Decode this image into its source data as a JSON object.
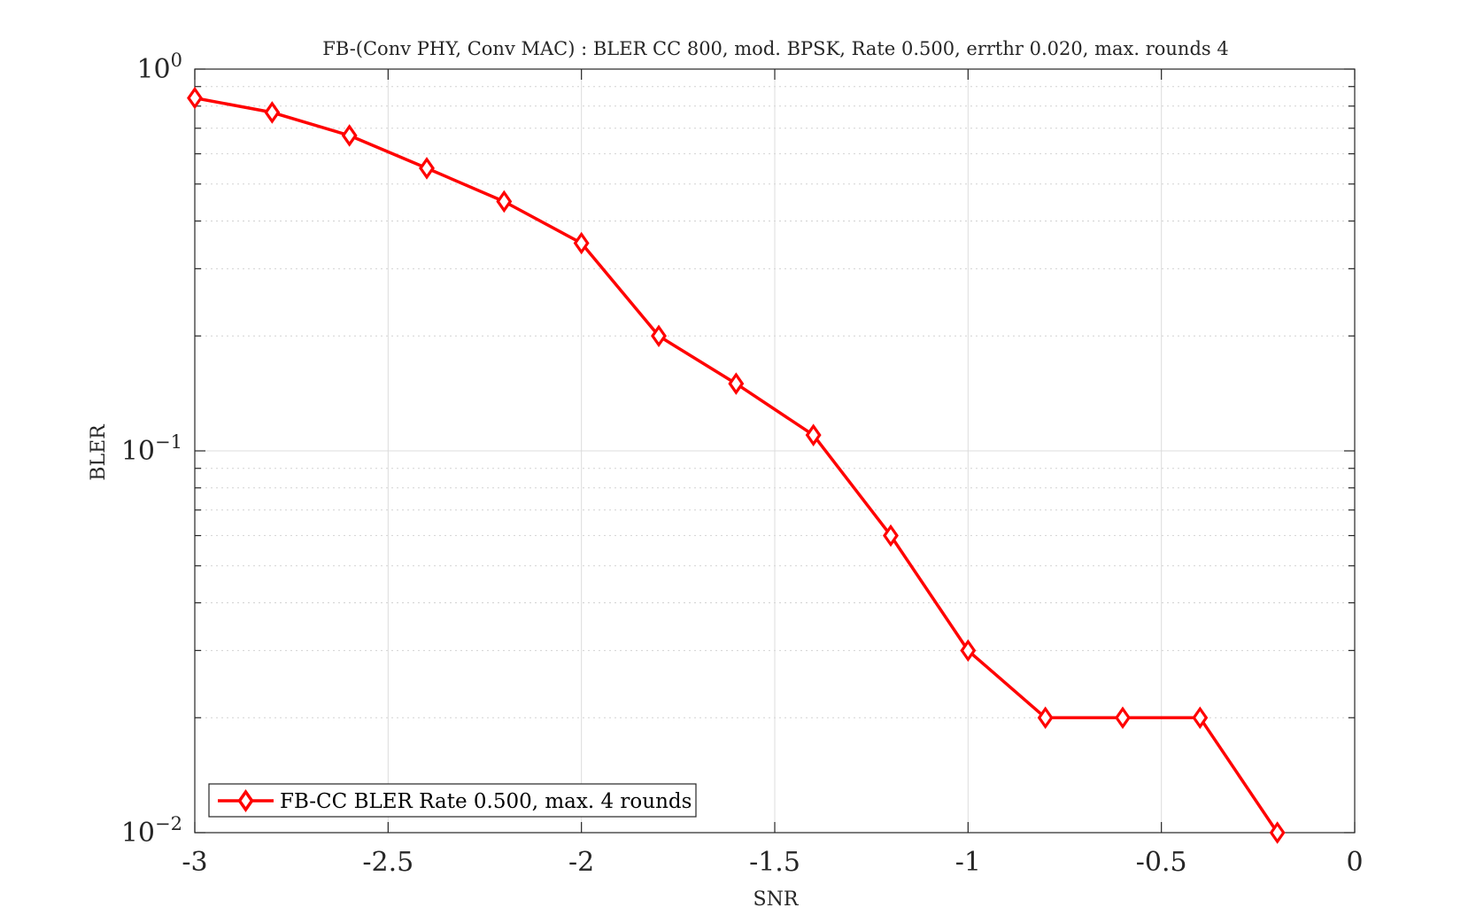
{
  "chart_data": {
    "type": "line",
    "title": "FB-(Conv PHY, Conv MAC) : BLER CC 800, mod. BPSK, Rate 0.500, errthr 0.020, max. rounds 4",
    "xlabel": "SNR",
    "ylabel": "BLER",
    "xlim": [
      -3,
      0
    ],
    "ylim": [
      0.01,
      1
    ],
    "yscale": "log",
    "grid": true,
    "legend_position": "bottom-left",
    "x_ticks": [
      -3,
      -2.5,
      -2,
      -1.5,
      -1,
      -0.5,
      0
    ],
    "x_tick_labels": [
      "-3",
      "-2.5",
      "-2",
      "-1.5",
      "-1",
      "-0.5",
      "0"
    ],
    "y_ticks": [
      {
        "value": 1,
        "base": "10",
        "exp": "0"
      },
      {
        "value": 0.1,
        "base": "10",
        "exp": "−1"
      },
      {
        "value": 0.01,
        "base": "10",
        "exp": "−2"
      }
    ],
    "series": [
      {
        "name": "FB-CC BLER Rate 0.500, max. 4 rounds",
        "color": "#ff0000",
        "marker": "diamond",
        "x": [
          -3,
          -2.8,
          -2.6,
          -2.4,
          -2.2,
          -2,
          -1.8,
          -1.6,
          -1.4,
          -1.2,
          -1,
          -0.8,
          -0.6,
          -0.4,
          -0.2
        ],
        "y": [
          0.84,
          0.77,
          0.67,
          0.55,
          0.45,
          0.35,
          0.2,
          0.15,
          0.11,
          0.06,
          0.03,
          0.02,
          0.02,
          0.02,
          0.01
        ]
      }
    ]
  }
}
